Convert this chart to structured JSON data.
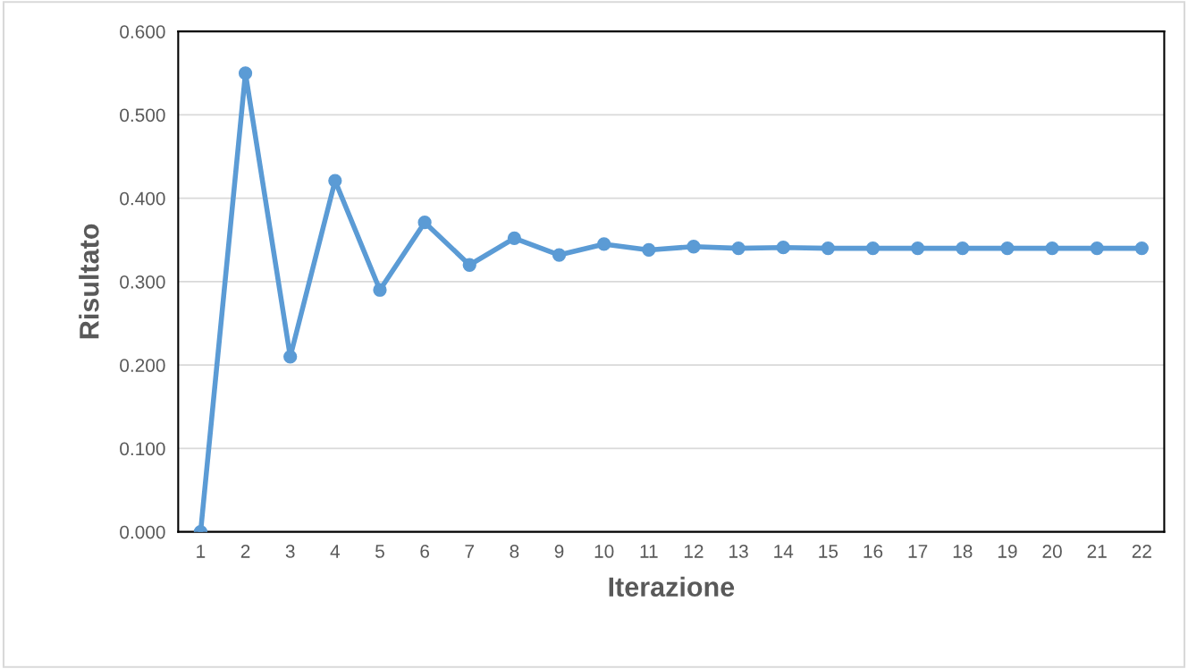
{
  "chart_data": {
    "type": "line",
    "xlabel": "Iterazione",
    "ylabel": "Risultato",
    "categories": [
      "1",
      "2",
      "3",
      "4",
      "5",
      "6",
      "7",
      "8",
      "9",
      "10",
      "11",
      "12",
      "13",
      "14",
      "15",
      "16",
      "17",
      "18",
      "19",
      "20",
      "21",
      "22"
    ],
    "series": [
      {
        "color": "#5b9bd5",
        "values": [
          0.0,
          0.55,
          0.21,
          0.421,
          0.29,
          0.371,
          0.32,
          0.352,
          0.332,
          0.345,
          0.338,
          0.342,
          0.34,
          0.341,
          0.34,
          0.34,
          0.34,
          0.34,
          0.34,
          0.34,
          0.34,
          0.34
        ]
      }
    ],
    "ylim": [
      0,
      0.6
    ],
    "yticks": [
      {
        "value": 0,
        "label": "0.000"
      },
      {
        "value": 0.1,
        "label": "0.100"
      },
      {
        "value": 0.2,
        "label": "0.200"
      },
      {
        "value": 0.3,
        "label": "0.300"
      },
      {
        "value": 0.4,
        "label": "0.400"
      },
      {
        "value": 0.5,
        "label": "0.500"
      },
      {
        "value": 0.6,
        "label": "0.600"
      }
    ],
    "grid": "y",
    "marker": "circle",
    "line_style": "solid"
  }
}
